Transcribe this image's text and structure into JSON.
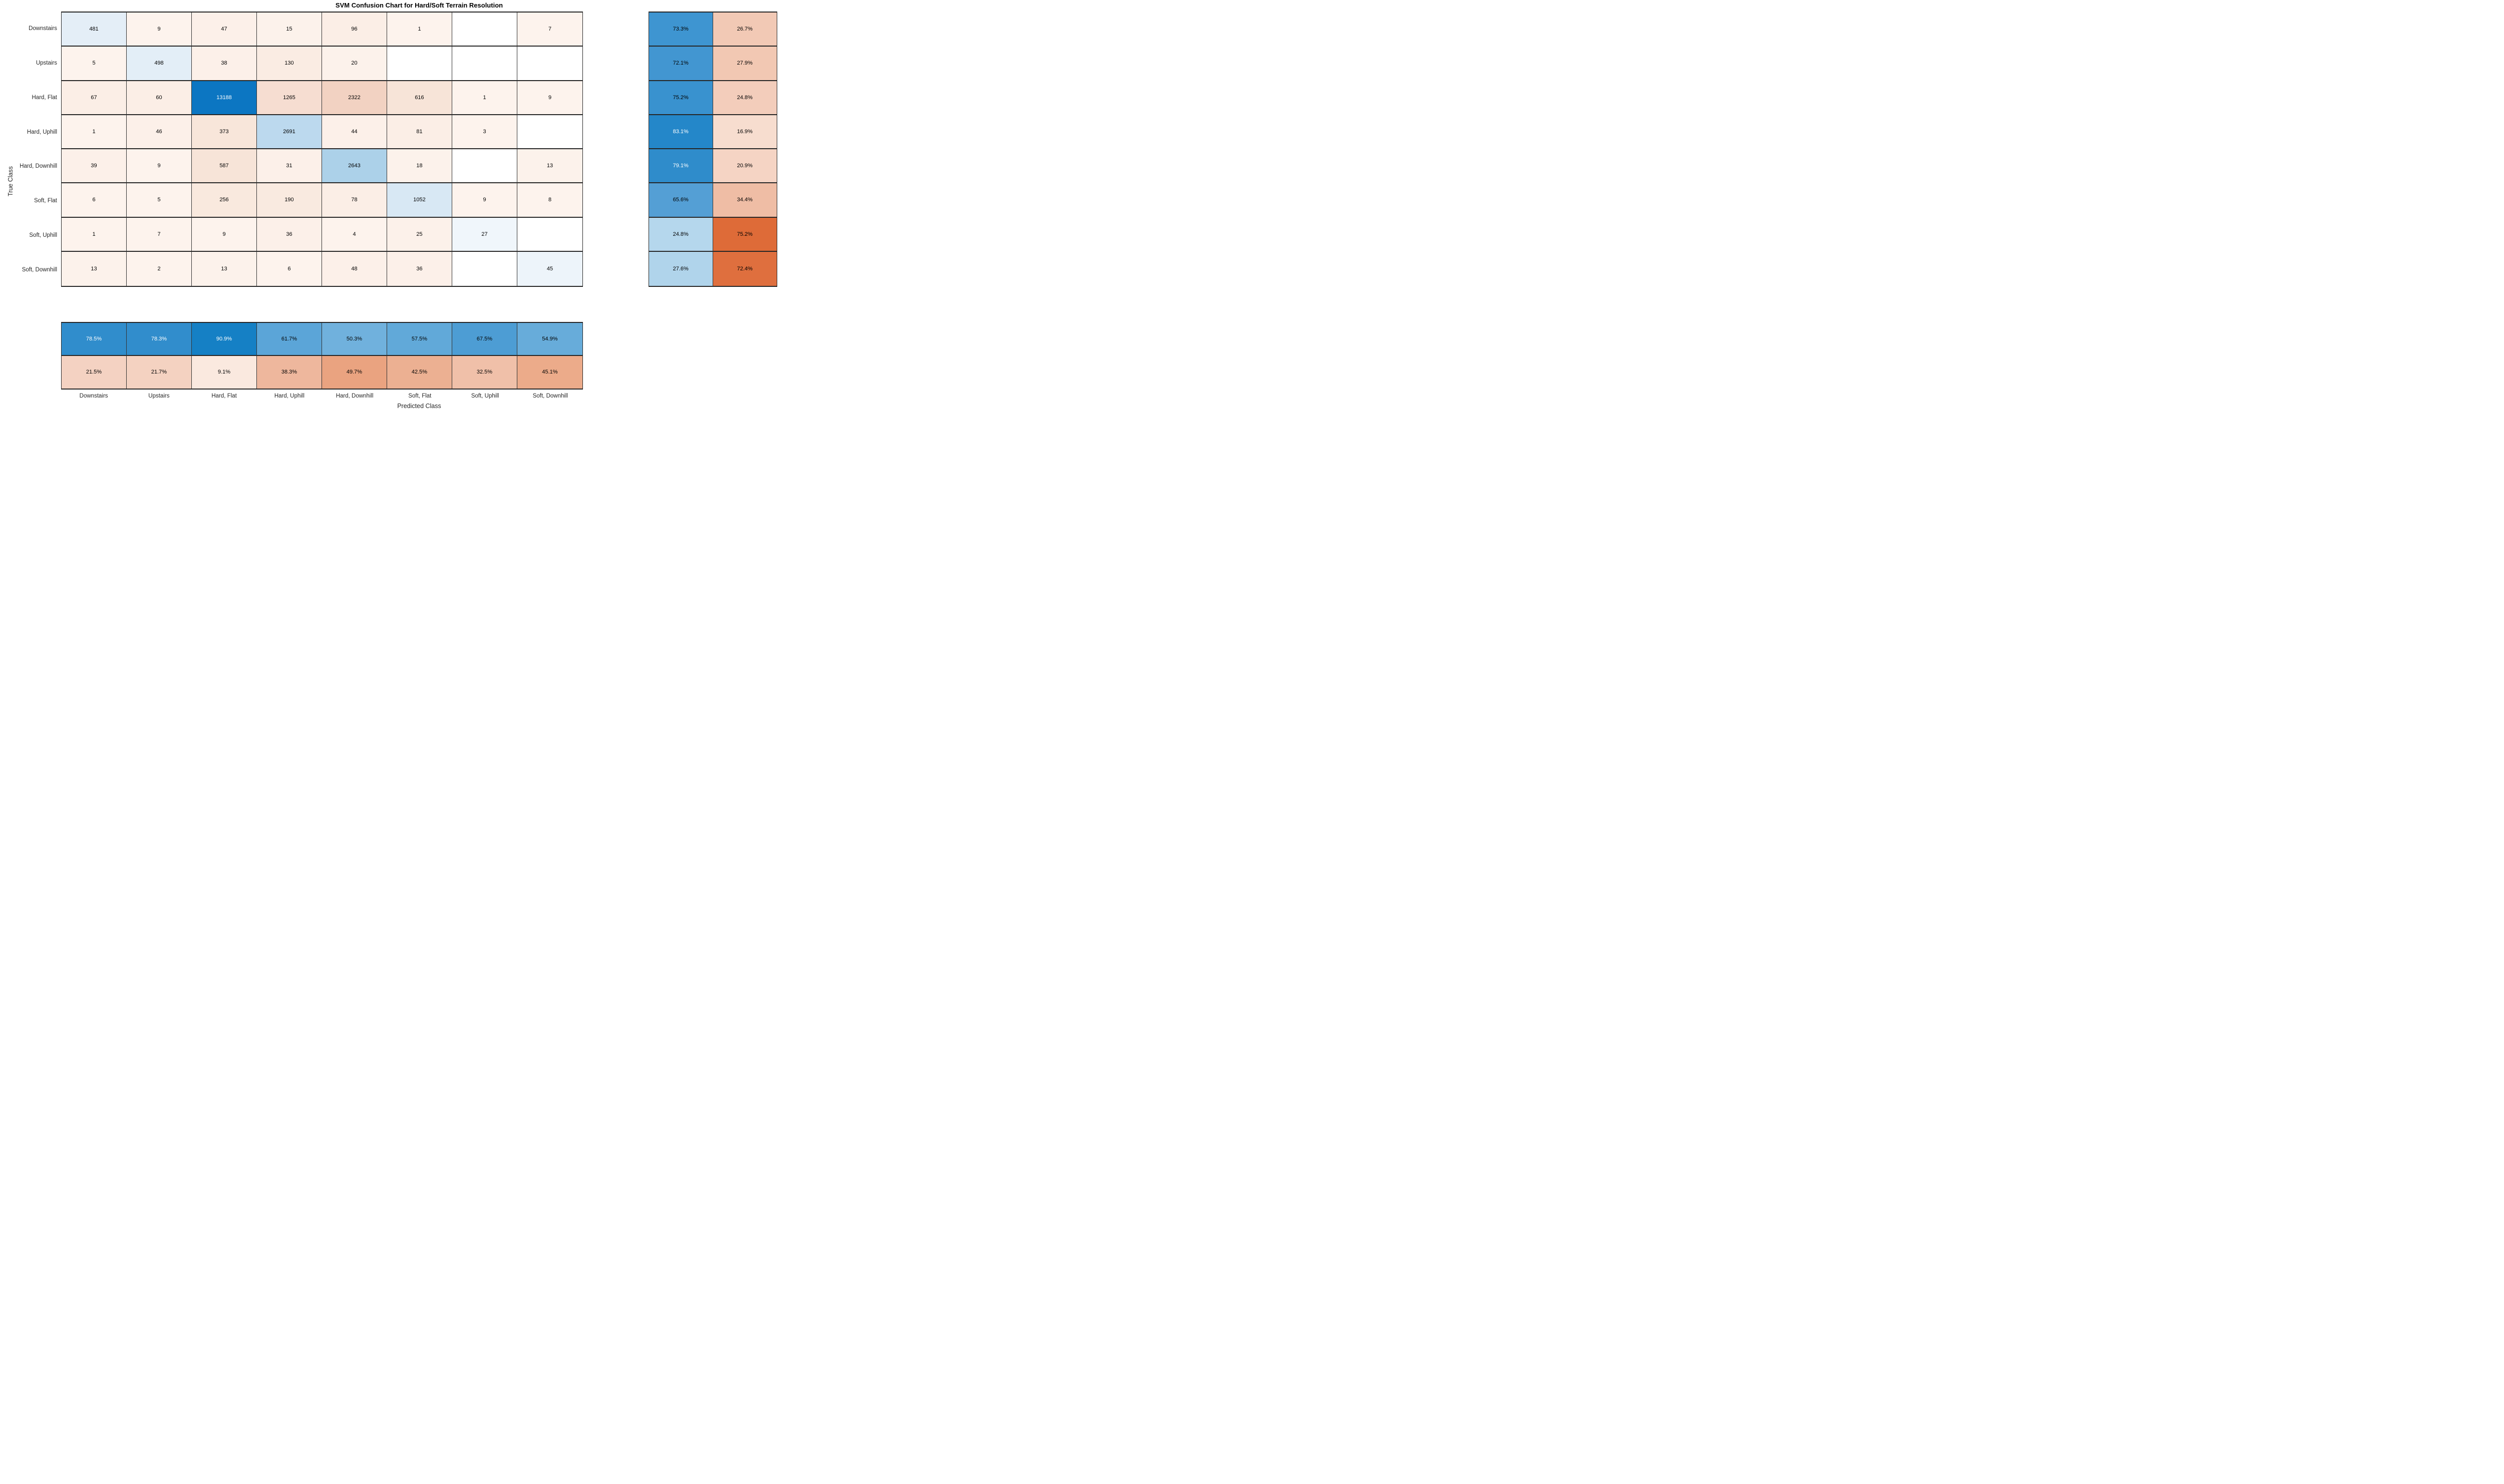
{
  "chart_data": {
    "type": "heatmap",
    "subtype": "confusion-matrix",
    "title": "SVM Confusion Chart for Hard/Soft Terrain Resolution",
    "xlabel": "Predicted Class",
    "ylabel": "True Class",
    "legend_position": "none",
    "grid": "cell-borders",
    "classes": [
      "Downstairs",
      "Upstairs",
      "Hard, Flat",
      "Hard, Uphill",
      "Hard, Downhill",
      "Soft, Flat",
      "Soft, Uphill",
      "Soft, Downhill"
    ],
    "matrix": [
      [
        481,
        9,
        47,
        15,
        96,
        1,
        null,
        7
      ],
      [
        5,
        498,
        38,
        130,
        20,
        null,
        null,
        null
      ],
      [
        67,
        60,
        13188,
        1265,
        2322,
        616,
        1,
        9
      ],
      [
        1,
        46,
        373,
        2691,
        44,
        81,
        3,
        null
      ],
      [
        39,
        9,
        587,
        31,
        2643,
        18,
        null,
        13
      ],
      [
        6,
        5,
        256,
        190,
        78,
        1052,
        9,
        8
      ],
      [
        1,
        7,
        9,
        36,
        4,
        25,
        27,
        null
      ],
      [
        13,
        2,
        13,
        6,
        48,
        36,
        null,
        45
      ]
    ],
    "row_summary_percent": [
      [
        73.3,
        26.7
      ],
      [
        72.1,
        27.9
      ],
      [
        75.2,
        24.8
      ],
      [
        83.1,
        16.9
      ],
      [
        79.1,
        20.9
      ],
      [
        65.6,
        34.4
      ],
      [
        24.8,
        75.2
      ],
      [
        27.6,
        72.4
      ]
    ],
    "col_summary_percent": [
      [
        78.5,
        78.3,
        90.9,
        61.7,
        50.3,
        57.5,
        67.5,
        54.9
      ],
      [
        21.5,
        21.7,
        9.1,
        38.3,
        49.7,
        42.5,
        32.5,
        45.1
      ]
    ]
  },
  "styles": {
    "diagonal_color": "#0B72BD",
    "off_diagonal_color": "#D95319",
    "matrix_cell_colors": [
      [
        "#E4EEF7",
        "#FDF3ED",
        "#FCF0E9",
        "#FCF2EB",
        "#FBEEE6",
        "#FDF3ED",
        "#FFFFFF",
        "#FDF3ED"
      ],
      [
        "#FDF3ED",
        "#E3EEF7",
        "#FCF0E9",
        "#FAECE3",
        "#FCF2EB",
        "#FFFFFF",
        "#FFFFFF",
        "#FFFFFF"
      ],
      [
        "#FBEEE6",
        "#FBEEE6",
        "#0C76C2",
        "#F6DDD1",
        "#F2D2C2",
        "#F7E4D8",
        "#FDF3ED",
        "#FDF3ED"
      ],
      [
        "#FDF3ED",
        "#FCF0E9",
        "#F8E6DA",
        "#BCD9EE",
        "#FCF0E9",
        "#FBEEE6",
        "#FDF3ED",
        "#FFFFFF"
      ],
      [
        "#FCF0E9",
        "#FDF3ED",
        "#F7E4D8",
        "#FCF0E9",
        "#ACD1E9",
        "#FCF2EB",
        "#FFFFFF",
        "#FCF2EB"
      ],
      [
        "#FDF3ED",
        "#FDF3ED",
        "#F9E9DE",
        "#F9EAE0",
        "#FBEEE6",
        "#D8E8F4",
        "#FDF3ED",
        "#FDF3ED"
      ],
      [
        "#FDF3ED",
        "#FDF3ED",
        "#FDF3ED",
        "#FCF0E9",
        "#FDF3ED",
        "#FCF1EA",
        "#F0F6FB",
        "#FFFFFF"
      ],
      [
        "#FCF2EB",
        "#FDF3ED",
        "#FCF2EB",
        "#FDF3ED",
        "#FCF0E9",
        "#FCF0E9",
        "#FFFFFF",
        "#EDF4FA"
      ]
    ],
    "row_summary_colors": [
      [
        "#3E95D1",
        "#F2C9B5"
      ],
      [
        "#4296D1",
        "#F2C8B3"
      ],
      [
        "#3992CF",
        "#F3CDBB"
      ],
      [
        "#2487C9",
        "#F7DDCF"
      ],
      [
        "#2F8CCB",
        "#F5D4C4"
      ],
      [
        "#549FD5",
        "#EFBDA5"
      ],
      [
        "#B5D7ED",
        "#DE6B38"
      ],
      [
        "#B0D4EB",
        "#DF6F3E"
      ]
    ],
    "col_summary_colors": [
      [
        "#308DCC",
        "#318DCC",
        "#1580C5",
        "#5BA5D8",
        "#70B1DD",
        "#61A9D9",
        "#4D9DD4",
        "#67ACDA"
      ],
      [
        "#F4D2C2",
        "#F4D2C1",
        "#FAE9DF",
        "#EEB79D",
        "#EAA380",
        "#ECB092",
        "#F0C0A9",
        "#ECAB8A"
      ]
    ]
  }
}
